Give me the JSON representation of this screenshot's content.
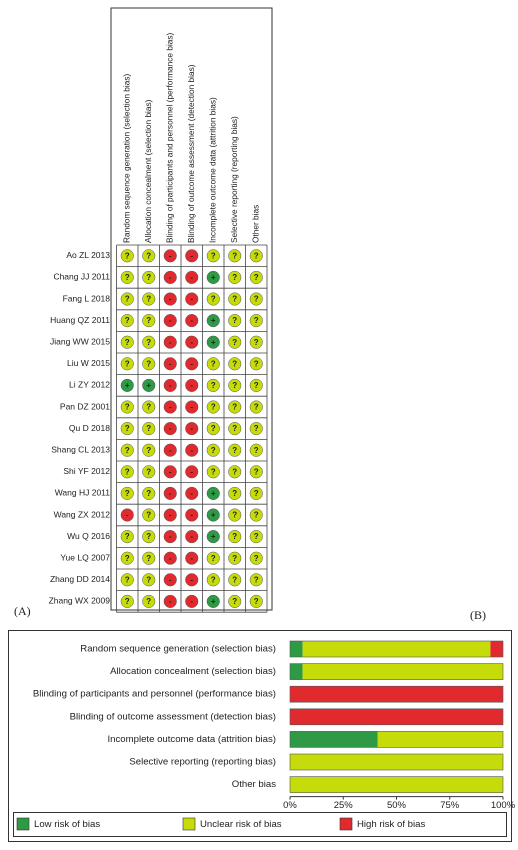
{
  "chart_data": [
    {
      "type": "risk-of-bias-table",
      "panel_label": "(A)",
      "domains": [
        "Random sequence generation (selection bias)",
        "Allocation concealment (selection bias)",
        "Blinding of participants and personnel (performance bias)",
        "Blinding of outcome assessment (detection bias)",
        "Incomplete outcome data (attrition bias)",
        "Selective reporting (reporting bias)",
        "Other bias"
      ],
      "studies": [
        "Ao ZL 2013",
        "Chang JJ 2011",
        "Fang L 2018",
        "Huang QZ 2011",
        "Jiang WW 2015",
        "Liu W 2015",
        "Li ZY 2012",
        "Pan DZ 2001",
        "Qu D 2018",
        "Shang CL 2013",
        "Shi YF 2012",
        "Wang HJ 2011",
        "Wang ZX 2012",
        "Wu Q 2016",
        "Yue LQ 2007",
        "Zhang DD 2014",
        "Zhang WX 2009"
      ],
      "judgments": [
        [
          "?",
          "?",
          "-",
          "-",
          "?",
          "?",
          "?"
        ],
        [
          "?",
          "?",
          "-",
          "-",
          "+",
          "?",
          "?"
        ],
        [
          "?",
          "?",
          "-",
          "-",
          "?",
          "?",
          "?"
        ],
        [
          "?",
          "?",
          "-",
          "-",
          "+",
          "?",
          "?"
        ],
        [
          "?",
          "?",
          "-",
          "-",
          "+",
          "?",
          "?"
        ],
        [
          "?",
          "?",
          "-",
          "-",
          "?",
          "?",
          "?"
        ],
        [
          "+",
          "+",
          "-",
          "-",
          "?",
          "?",
          "?"
        ],
        [
          "?",
          "?",
          "-",
          "-",
          "?",
          "?",
          "?"
        ],
        [
          "?",
          "?",
          "-",
          "-",
          "?",
          "?",
          "?"
        ],
        [
          "?",
          "?",
          "-",
          "-",
          "?",
          "?",
          "?"
        ],
        [
          "?",
          "?",
          "-",
          "-",
          "?",
          "?",
          "?"
        ],
        [
          "?",
          "?",
          "-",
          "-",
          "+",
          "?",
          "?"
        ],
        [
          "-",
          "?",
          "-",
          "-",
          "+",
          "?",
          "?"
        ],
        [
          "?",
          "?",
          "-",
          "-",
          "+",
          "?",
          "?"
        ],
        [
          "?",
          "?",
          "-",
          "-",
          "?",
          "?",
          "?"
        ],
        [
          "?",
          "?",
          "-",
          "-",
          "?",
          "?",
          "?"
        ],
        [
          "?",
          "?",
          "-",
          "-",
          "+",
          "?",
          "?"
        ]
      ],
      "symbol_colors": {
        "+": "#2f9a45",
        "?": "#c6dc0a",
        "-": "#e02a2e"
      }
    },
    {
      "type": "stacked-barh",
      "panel_label": "(B)",
      "categories": [
        "Random sequence generation (selection bias)",
        "Allocation concealment (selection bias)",
        "Blinding of participants and personnel (performance bias)",
        "Blinding of outcome assessment (detection bias)",
        "Incomplete outcome data (attrition bias)",
        "Selective reporting (reporting bias)",
        "Other bias"
      ],
      "series": [
        {
          "name": "Low risk of bias",
          "color": "#2f9a45",
          "values": [
            5.9,
            5.9,
            0,
            0,
            41.2,
            0,
            0
          ]
        },
        {
          "name": "Unclear risk of bias",
          "color": "#c6dc0a",
          "values": [
            88.2,
            94.1,
            0,
            0,
            58.8,
            100,
            100
          ]
        },
        {
          "name": "High risk of bias",
          "color": "#e02a2e",
          "values": [
            5.9,
            0,
            100,
            100,
            0,
            0,
            0
          ]
        }
      ],
      "xlim": [
        0,
        100
      ],
      "xticks": [
        {
          "value": 0,
          "label": "0%"
        },
        {
          "value": 25,
          "label": "25%"
        },
        {
          "value": 50,
          "label": "50%"
        },
        {
          "value": 75,
          "label": "75%"
        },
        {
          "value": 100,
          "label": "100%"
        }
      ]
    }
  ]
}
